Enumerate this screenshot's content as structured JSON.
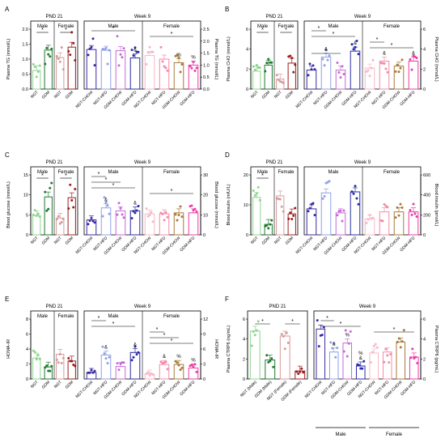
{
  "figure": {
    "panels": [
      {
        "letter": "A"
      },
      {
        "letter": "B"
      },
      {
        "letter": "C"
      },
      {
        "letter": "D"
      },
      {
        "letter": "E"
      },
      {
        "letter": "F"
      }
    ]
  },
  "colors": {
    "ngt": "#8fd48f",
    "gdm": "#1e7a2e",
    "ngt_f": "#d89a9a",
    "gdm_f": "#a01c1c",
    "ngt_chow": "#3a2ba6",
    "ngt_hfd": "#8fa0e8",
    "gdm_chow": "#c66ad6",
    "gdm_hfd": "#2a2aa8",
    "f_ngt_chow": "#f7b8c8",
    "f_ngt_hfd": "#f58aa8",
    "f_gdm_chow": "#a87a3a",
    "f_gdm_hfd": "#ef3aa8"
  },
  "chart_data": [
    {
      "id": "A",
      "type": "bar",
      "pnd_title": "PND 21",
      "week_title": "Week 9",
      "ylabel_left": "Plasma TG (mmol/L)",
      "ylabel_right": "Plasma TG (mmol/L)",
      "left_ylim": [
        0,
        2.0
      ],
      "left_ticks": [
        "0.0",
        "0.5",
        "1.0",
        "1.5",
        "2.0"
      ],
      "right_ylim": [
        0,
        2.5
      ],
      "right_ticks": [
        "0.0",
        "0.5",
        "1.0",
        "1.5",
        "2.0",
        "2.5"
      ],
      "pnd_groups": [
        "Male",
        "Female"
      ],
      "week_groups": [
        "Male",
        "Female"
      ],
      "pnd_categories": [
        "NGT",
        "GDM",
        "NGT",
        "GDM"
      ],
      "pnd_values": [
        0.62,
        1.3,
        1.05,
        1.4
      ],
      "week_categories": [
        "NGT-CHOW",
        "NGT-HFD",
        "GDM-CHOW",
        "GDM-HFD",
        "NGT-CHOW",
        "NGT-HFD",
        "GDM-CHOW",
        "GDM-HFD"
      ],
      "week_values": [
        1.65,
        1.62,
        1.6,
        1.3,
        1.4,
        1.25,
        1.1,
        1.0
      ],
      "week_marks": [
        "",
        "",
        "",
        "&",
        "",
        "",
        "%",
        "%"
      ],
      "pnd_sig": [
        "*",
        "*"
      ],
      "week_sig": [
        "*",
        "*"
      ]
    },
    {
      "id": "B",
      "type": "bar",
      "pnd_title": "PND 21",
      "week_title": "Week 9",
      "ylabel_left": "Plasma CHO (mmol/L)",
      "ylabel_right": "Plasma CHO (mmol/L)",
      "left_ylim": [
        0,
        6
      ],
      "left_ticks": [
        "0",
        "2",
        "4",
        "6"
      ],
      "right_ylim": [
        0,
        6
      ],
      "right_ticks": [
        "0",
        "2",
        "4",
        "6"
      ],
      "pnd_groups": [
        "Male",
        "Female"
      ],
      "week_groups": [
        "Male",
        "Female"
      ],
      "pnd_categories": [
        "NGT",
        "GDM",
        "NGT",
        "GDM"
      ],
      "pnd_values": [
        1.8,
        2.4,
        1.0,
        2.6
      ],
      "week_categories": [
        "NGT-CHOW",
        "NGT-HFD",
        "GDM-CHOW",
        "GDM-HFD",
        "NGT-CHOW",
        "NGT-HFD",
        "GDM-CHOW",
        "GDM-HFD"
      ],
      "week_values": [
        1.9,
        3.2,
        1.9,
        3.8,
        2.1,
        2.8,
        2.3,
        2.8
      ],
      "week_marks": [
        "",
        "&",
        "",
        "&",
        "",
        "&",
        "",
        "&"
      ],
      "pnd_sig": [
        "*",
        "*"
      ],
      "week_sig": [
        "*",
        "*",
        "*",
        "*",
        "*"
      ]
    },
    {
      "id": "C",
      "type": "bar",
      "pnd_title": "PND 21",
      "week_title": "Week 9",
      "ylabel_left": "Blood glucose (mmol/L)",
      "ylabel_right": "Blood glucose (mmol/L)",
      "left_ylim": [
        0,
        15
      ],
      "left_ticks": [
        "0",
        "5",
        "10",
        "15"
      ],
      "right_ylim": [
        0,
        30
      ],
      "right_ticks": [
        "0",
        "10",
        "20",
        "30"
      ],
      "pnd_groups": [
        "Male",
        "Female"
      ],
      "week_groups": [
        "Male",
        "Female"
      ],
      "pnd_categories": [
        "NGT",
        "GDM",
        "NGT",
        "GDM"
      ],
      "pnd_values": [
        4.8,
        9.5,
        4.2,
        9.3
      ],
      "week_categories": [
        "NGT-CHOW",
        "NGT-HFD",
        "GDM-CHOW",
        "GDM-HFD",
        "NGT-CHOW",
        "NGT-HFD",
        "GDM-CHOW",
        "GDM-HFD"
      ],
      "week_values": [
        7.5,
        13.5,
        12.0,
        12.0,
        10.5,
        10.5,
        11.0,
        11.0
      ],
      "week_marks": [
        "",
        "&",
        "",
        "&",
        "",
        "",
        "",
        ""
      ],
      "pnd_sig": [
        "*",
        "*"
      ],
      "week_sig": [
        "*",
        "*",
        "*",
        "*"
      ]
    },
    {
      "id": "D",
      "type": "bar",
      "pnd_title": "PND 21",
      "week_title": "Week 9",
      "ylabel_left": "Blood insulin (mIU/L)",
      "ylabel_right": "Blood insulin (pmol/L)",
      "left_ylim": [
        0,
        20
      ],
      "left_ticks": [
        "0",
        "10",
        "20"
      ],
      "right_ylim": [
        0,
        600
      ],
      "right_ticks": [
        "0",
        "200",
        "400",
        "600"
      ],
      "pnd_groups": [
        "Male",
        "Female"
      ],
      "week_groups": [
        "Male",
        "Female"
      ],
      "pnd_categories": [
        "NGT",
        "GDM",
        "NGT",
        "GDM"
      ],
      "pnd_values": [
        12.5,
        3.5,
        13.0,
        7.0
      ],
      "week_categories": [
        "NGT-CHOW",
        "NGT-HFD",
        "GDM-CHOW",
        "GDM-HFD",
        "NGT-CHOW",
        "NGT-HFD",
        "GDM-CHOW",
        "GDM-HFD"
      ],
      "week_values": [
        260,
        420,
        220,
        430,
        160,
        230,
        230,
        230
      ],
      "week_marks": [
        "",
        "",
        "",
        "",
        "",
        "",
        "",
        ""
      ],
      "pnd_sig": [
        "*"
      ],
      "week_sig": []
    },
    {
      "id": "E",
      "type": "bar",
      "pnd_title": "PND 21",
      "week_title": "Week 9",
      "ylabel_left": "HOMA-IR",
      "ylabel_right": "HOMA-IR",
      "left_ylim": [
        0,
        8
      ],
      "left_ticks": [
        "0",
        "2",
        "4",
        "6",
        "8"
      ],
      "right_ylim": [
        0,
        12
      ],
      "right_ticks": [
        "0",
        "3",
        "6",
        "9",
        "12"
      ],
      "pnd_groups": [
        "Male",
        "Female"
      ],
      "week_groups": [
        "Male",
        "Female"
      ],
      "pnd_categories": [
        "NGT",
        "GDM",
        "NGT",
        "GDM"
      ],
      "pnd_values": [
        2.8,
        1.6,
        3.3,
        2.4
      ],
      "week_categories": [
        "NGT-CHOW",
        "NGT-HFD",
        "GDM-CHOW",
        "GDM-HFD",
        "NGT-CHOW",
        "NGT-HFD",
        "GDM-CHOW",
        "GDM-HFD"
      ],
      "week_values": [
        1.3,
        4.8,
        2.5,
        5.3,
        1.0,
        2.9,
        2.9,
        2.2
      ],
      "week_marks": [
        "",
        "&",
        "",
        "&",
        "",
        "&",
        "%",
        "%"
      ],
      "pnd_sig": [],
      "week_sig": [
        "*",
        "*",
        "*",
        "*",
        "*"
      ]
    },
    {
      "id": "F",
      "type": "bar",
      "pnd_title": "PND 21",
      "week_title": "Week 9",
      "ylabel_left": "Plasma CTRP6 (ng/mL)",
      "ylabel_right": "Plasma CTRP6 (pg/mL)",
      "left_ylim": [
        0,
        6
      ],
      "left_ticks": [
        "0",
        "2",
        "4",
        "6"
      ],
      "right_ylim": [
        0,
        6
      ],
      "right_ticks": [
        "0",
        "2",
        "4",
        "6"
      ],
      "pnd_groups": [],
      "week_groups": [
        "Male",
        "Female"
      ],
      "pnd_categories": [
        "NGT (Male)",
        "GDM (Male)",
        "NGT (Female)",
        "GDM (Female)"
      ],
      "pnd_values": [
        4.8,
        1.9,
        4.3,
        0.8
      ],
      "week_categories": [
        "NGT-CHOW",
        "NGT-HFD",
        "GDM-CHOW",
        "GDM-HFD",
        "NGT-CHOW",
        "NGT-HFD",
        "GDM-CHOW",
        "GDM-HFD"
      ],
      "week_values": [
        5.0,
        2.7,
        3.6,
        1.3,
        2.6,
        2.7,
        3.7,
        2.2
      ],
      "week_marks": [
        "",
        "&",
        "%",
        "&\n%",
        "",
        "",
        "",
        ""
      ],
      "pnd_sig": [
        "*",
        "*"
      ],
      "week_sig": [
        "*",
        "*",
        "*"
      ]
    }
  ]
}
